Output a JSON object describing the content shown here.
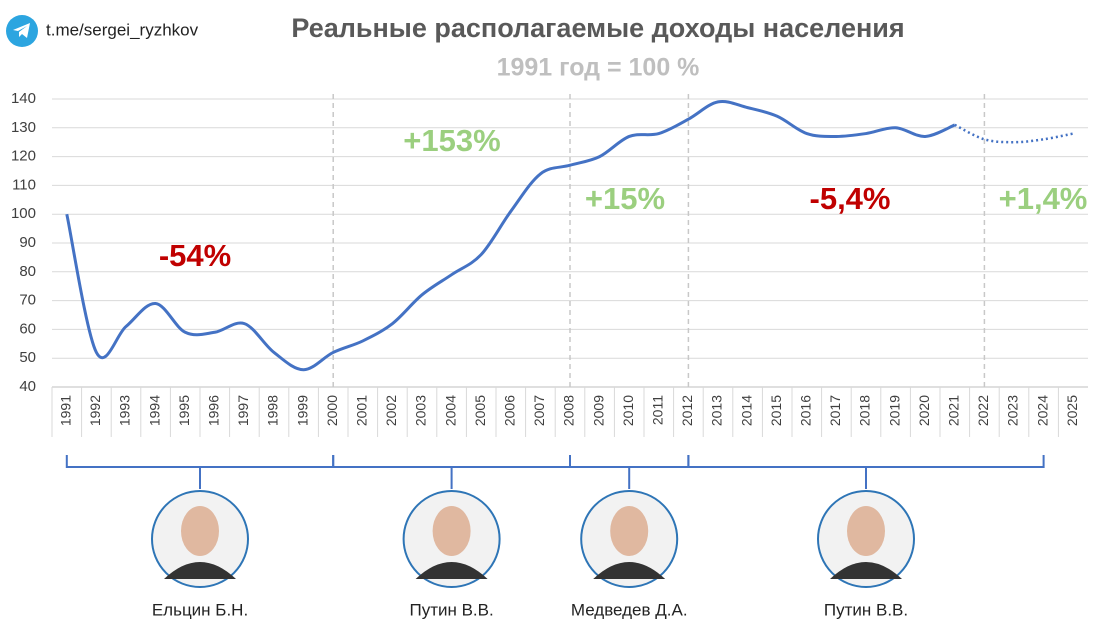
{
  "header": {
    "channel": "t.me/sergei_ryzhkov"
  },
  "chart_data": {
    "type": "line",
    "title": "Реальные располагаемые доходы населения",
    "subtitle": "1991 год = 100 %",
    "x": [
      1991,
      1992,
      1993,
      1994,
      1995,
      1996,
      1997,
      1998,
      1999,
      2000,
      2001,
      2002,
      2003,
      2004,
      2005,
      2006,
      2007,
      2008,
      2009,
      2010,
      2011,
      2012,
      2013,
      2014,
      2015,
      2016,
      2017,
      2018,
      2019,
      2020,
      2021,
      2022,
      2023,
      2024,
      2025
    ],
    "xlim": [
      1990.5,
      2025.5
    ],
    "series": [
      {
        "color": "#4472c4",
        "style": "solid",
        "values": [
          100,
          52,
          61,
          69,
          59,
          59,
          62,
          52,
          46,
          52,
          56,
          62,
          72,
          79,
          86,
          101,
          114,
          117,
          120,
          127,
          128,
          133,
          139,
          137,
          134,
          128,
          127,
          128,
          130,
          127,
          131,
          null,
          null,
          null,
          null
        ]
      },
      {
        "color": "#4472c4",
        "style": "dotted",
        "values": [
          null,
          null,
          null,
          null,
          null,
          null,
          null,
          null,
          null,
          null,
          null,
          null,
          null,
          null,
          null,
          null,
          null,
          null,
          null,
          null,
          null,
          null,
          null,
          null,
          null,
          null,
          null,
          null,
          null,
          null,
          131,
          126,
          125,
          126,
          128
        ]
      }
    ],
    "ylim": [
      40,
      140
    ],
    "yticks": [
      40,
      50,
      60,
      70,
      80,
      90,
      100,
      110,
      120,
      130,
      140
    ],
    "grid": true,
    "dividers": [
      2000,
      2008,
      2012,
      2022
    ],
    "annotations": [
      {
        "text": "-54%",
        "color": "#c00000"
      },
      {
        "text": "+153%",
        "color": "#9bcf7f"
      },
      {
        "text": "+15%",
        "color": "#9bcf7f"
      },
      {
        "text": "-5,4%",
        "color": "#c00000"
      },
      {
        "text": "+1,4%",
        "color": "#9bcf7f"
      }
    ],
    "leaders": [
      {
        "name": "Ельцин Б.Н.",
        "from": 1991,
        "to": 2000
      },
      {
        "name": "Путин В.В.",
        "from": 2000,
        "to": 2008
      },
      {
        "name": "Медведев Д.А.",
        "from": 2008,
        "to": 2012
      },
      {
        "name": "Путин В.В.",
        "from": 2012,
        "to": 2024
      }
    ]
  }
}
